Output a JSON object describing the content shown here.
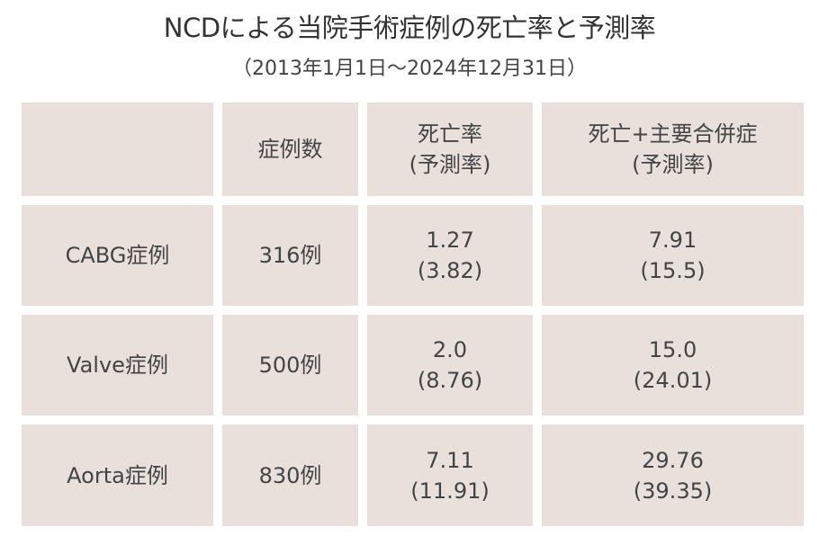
{
  "header": {
    "title": "NCDによる当院手術症例の死亡率と予測率",
    "subtitle": "（2013年1月1日～2024年12月31日）"
  },
  "table": {
    "columns": [
      [
        "症例数"
      ],
      [
        "死亡率",
        "(予測率)"
      ],
      [
        "死亡+主要合併症",
        "(予測率)"
      ]
    ],
    "rows": [
      [
        [
          "CABG症例"
        ],
        [
          "316例"
        ],
        [
          "1.27",
          "(3.82)"
        ],
        [
          "7.91",
          "(15.5)"
        ]
      ],
      [
        [
          "Valve症例"
        ],
        [
          "500例"
        ],
        [
          "2.0",
          "(8.76)"
        ],
        [
          "15.0",
          "(24.01)"
        ]
      ],
      [
        [
          "Aorta症例"
        ],
        [
          "830例"
        ],
        [
          "7.11",
          "(11.91)"
        ],
        [
          "29.76",
          "(39.35)"
        ]
      ]
    ]
  }
}
